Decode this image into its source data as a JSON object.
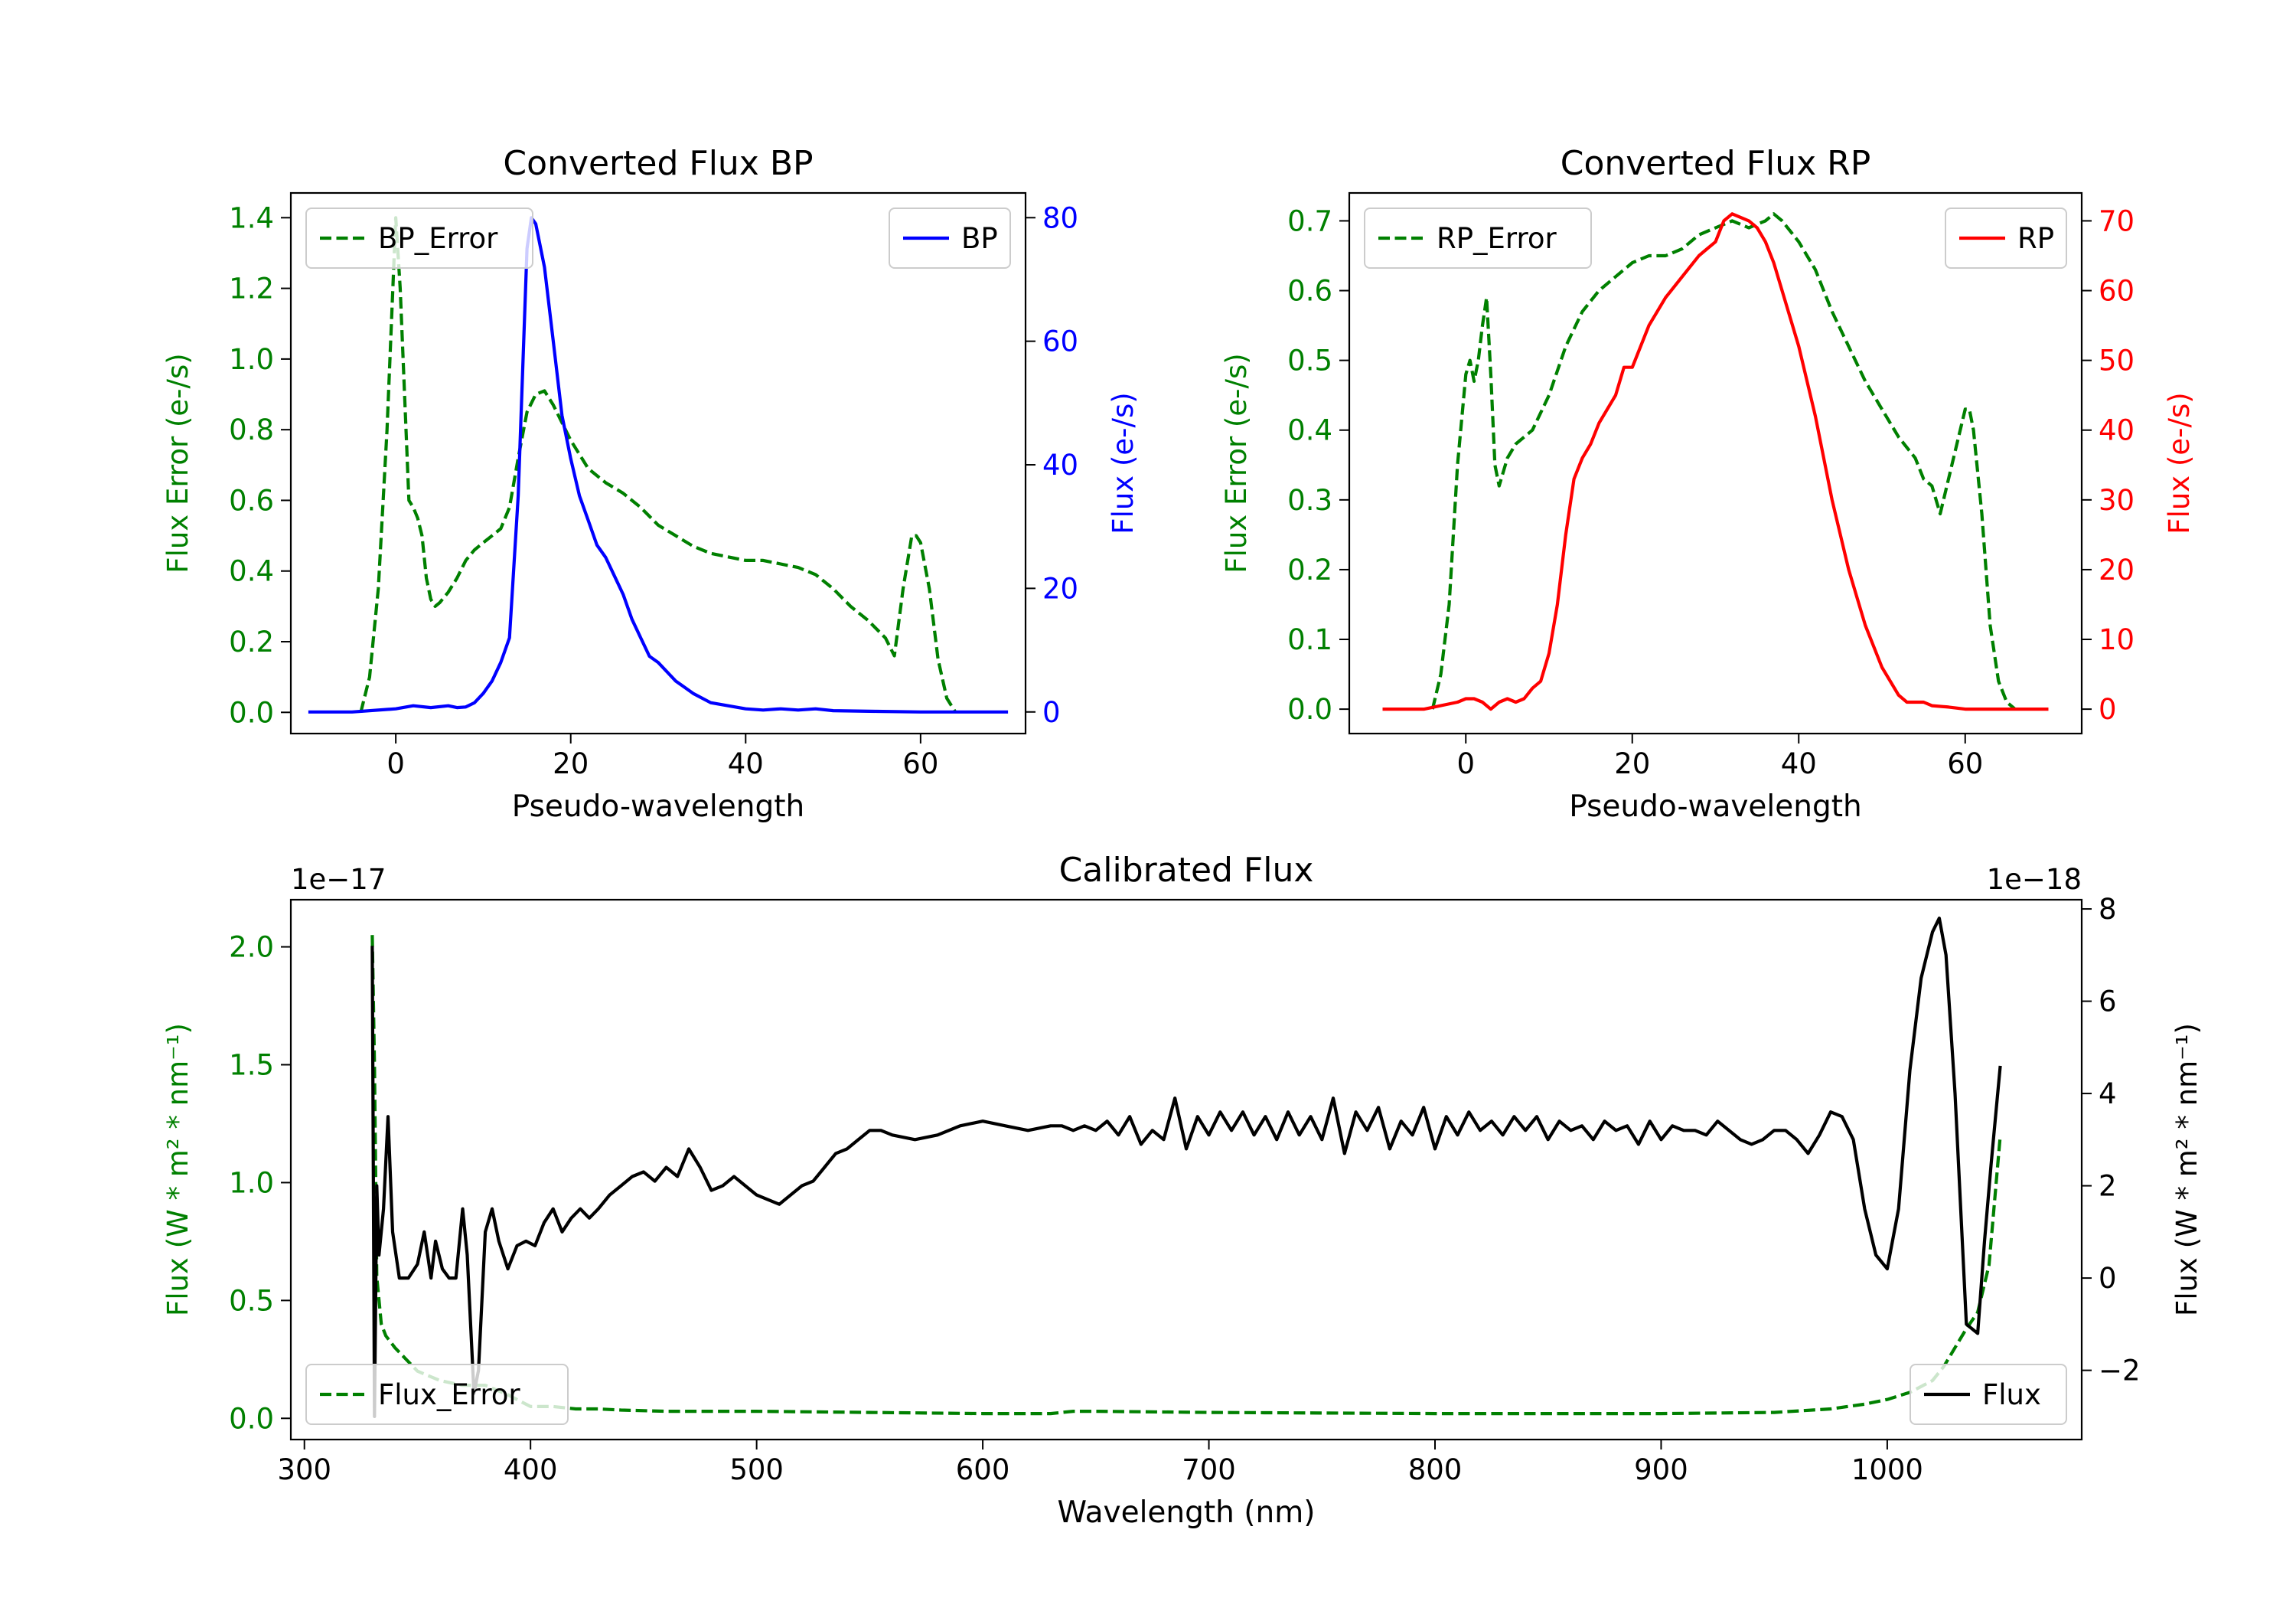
{
  "colors": {
    "bp": "#0000ff",
    "rp": "#ff0000",
    "error": "#008000",
    "flux": "#000000",
    "axis": "#000000"
  },
  "chart_data": [
    {
      "id": "bp",
      "type": "line",
      "title": "Converted Flux BP",
      "xlabel": "Pseudo-wavelength",
      "ylabel_left": "Flux Error (e-/s)",
      "ylabel_right": "Flux (e-/s)",
      "xlim": [
        -12,
        72
      ],
      "ylim_left": [
        -0.06,
        1.47
      ],
      "ylim_right": [
        -3.5,
        84
      ],
      "xticks": [
        0,
        20,
        40,
        60
      ],
      "yticks_left": [
        0.0,
        0.2,
        0.4,
        0.6,
        0.8,
        1.0,
        1.2,
        1.4
      ],
      "yticks_right": [
        0,
        20,
        40,
        60,
        80
      ],
      "legend_left": "top-left",
      "legend_right": "top-right",
      "series": [
        {
          "name": "BP_Error",
          "axis": "left",
          "style": "dashed",
          "color": "#008000",
          "x": [
            -4,
            -3,
            -2,
            -1,
            -0.5,
            0,
            0.5,
            1,
            1.5,
            2,
            2.5,
            3,
            3.5,
            4,
            4.5,
            5,
            6,
            7,
            8,
            9,
            10,
            11,
            12,
            13,
            14,
            15,
            16,
            17,
            18,
            19,
            20,
            22,
            24,
            26,
            28,
            30,
            32,
            34,
            36,
            38,
            40,
            42,
            44,
            46,
            48,
            50,
            52,
            54,
            56,
            57,
            58,
            59,
            59.5,
            60,
            61,
            62,
            63,
            64
          ],
          "y": [
            0.0,
            0.1,
            0.35,
            0.8,
            1.1,
            1.4,
            1.2,
            0.9,
            0.6,
            0.58,
            0.55,
            0.5,
            0.38,
            0.32,
            0.3,
            0.31,
            0.34,
            0.38,
            0.43,
            0.46,
            0.48,
            0.5,
            0.52,
            0.58,
            0.72,
            0.85,
            0.9,
            0.91,
            0.87,
            0.82,
            0.77,
            0.69,
            0.65,
            0.62,
            0.58,
            0.53,
            0.5,
            0.47,
            0.45,
            0.44,
            0.43,
            0.43,
            0.42,
            0.41,
            0.39,
            0.35,
            0.3,
            0.26,
            0.21,
            0.16,
            0.35,
            0.5,
            0.5,
            0.48,
            0.35,
            0.15,
            0.04,
            0.0
          ]
        },
        {
          "name": "BP",
          "axis": "right",
          "style": "solid",
          "color": "#0000ff",
          "x": [
            -10,
            -5,
            0,
            2,
            4,
            6,
            7,
            8,
            9,
            10,
            11,
            12,
            13,
            14,
            15,
            15.5,
            16,
            17,
            18,
            19,
            20,
            21,
            22,
            23,
            24,
            25,
            26,
            27,
            28,
            29,
            30,
            32,
            34,
            36,
            38,
            40,
            42,
            44,
            46,
            48,
            50,
            55,
            60,
            65,
            70
          ],
          "y": [
            0,
            0,
            0.5,
            1,
            0.7,
            1,
            0.7,
            0.8,
            1.5,
            3,
            5,
            8,
            12,
            35,
            75,
            80,
            79,
            72,
            60,
            48,
            41,
            35,
            31,
            27,
            25,
            22,
            19,
            15,
            12,
            9,
            8,
            5,
            3,
            1.5,
            1,
            0.5,
            0.3,
            0.5,
            0.3,
            0.5,
            0.2,
            0.1,
            0,
            0,
            0
          ]
        }
      ]
    },
    {
      "id": "rp",
      "type": "line",
      "title": "Converted Flux RP",
      "xlabel": "Pseudo-wavelength",
      "ylabel_left": "Flux Error (e-/s)",
      "ylabel_right": "Flux (e-/s)",
      "xlim": [
        -14,
        74
      ],
      "ylim_left": [
        -0.035,
        0.74
      ],
      "ylim_right": [
        -3.5,
        74
      ],
      "xticks": [
        0,
        20,
        40,
        60
      ],
      "yticks_left": [
        0.0,
        0.1,
        0.2,
        0.3,
        0.4,
        0.5,
        0.6,
        0.7
      ],
      "yticks_right": [
        0,
        10,
        20,
        30,
        40,
        50,
        60,
        70
      ],
      "legend_left": "top-left",
      "legend_right": "top-right",
      "series": [
        {
          "name": "RP_Error",
          "axis": "left",
          "style": "dashed",
          "color": "#008000",
          "x": [
            -4,
            -3,
            -2,
            -1,
            0,
            0.5,
            1,
            1.5,
            2,
            2.5,
            3,
            3.5,
            4,
            5,
            6,
            8,
            10,
            12,
            14,
            16,
            18,
            20,
            22,
            24,
            26,
            28,
            30,
            32,
            34,
            36,
            37,
            38,
            40,
            42,
            44,
            46,
            48,
            50,
            52,
            54,
            55,
            56,
            57,
            58,
            59,
            60,
            60.5,
            61,
            62,
            63,
            64,
            65,
            66
          ],
          "y": [
            0.0,
            0.05,
            0.15,
            0.35,
            0.48,
            0.5,
            0.47,
            0.5,
            0.55,
            0.59,
            0.48,
            0.35,
            0.32,
            0.36,
            0.38,
            0.4,
            0.45,
            0.52,
            0.57,
            0.6,
            0.62,
            0.64,
            0.65,
            0.65,
            0.66,
            0.68,
            0.69,
            0.7,
            0.69,
            0.7,
            0.71,
            0.7,
            0.67,
            0.63,
            0.57,
            0.52,
            0.47,
            0.43,
            0.39,
            0.36,
            0.33,
            0.32,
            0.28,
            0.33,
            0.38,
            0.43,
            0.43,
            0.4,
            0.28,
            0.12,
            0.04,
            0.01,
            0.0
          ]
        },
        {
          "name": "RP",
          "axis": "right",
          "style": "solid",
          "color": "#ff0000",
          "x": [
            -10,
            -5,
            -1,
            0,
            1,
            2,
            3,
            4,
            5,
            6,
            7,
            8,
            9,
            10,
            11,
            12,
            13,
            14,
            15,
            16,
            17,
            18,
            19,
            20,
            22,
            24,
            26,
            28,
            29,
            30,
            31,
            32,
            34,
            35,
            36,
            37,
            38,
            40,
            42,
            44,
            46,
            48,
            50,
            52,
            53,
            54,
            55,
            56,
            58,
            60,
            65,
            70
          ],
          "y": [
            0,
            0,
            1,
            1.5,
            1.5,
            1,
            0,
            1,
            1.5,
            1,
            1.5,
            3,
            4,
            8,
            15,
            25,
            33,
            36,
            38,
            41,
            43,
            45,
            49,
            49,
            55,
            59,
            62,
            65,
            66,
            67,
            70,
            71,
            70,
            69,
            67,
            64,
            60,
            52,
            42,
            30,
            20,
            12,
            6,
            2,
            1,
            1,
            1,
            0.5,
            0.3,
            0,
            0,
            0
          ]
        }
      ]
    },
    {
      "id": "calibrated",
      "type": "line",
      "title": "Calibrated Flux",
      "xlabel": "Wavelength (nm)",
      "ylabel_left": "Flux (W * m² * nm⁻¹)",
      "ylabel_right": "Flux (W * m² * nm⁻¹)",
      "offset_left": "1e−17",
      "offset_right": "1e−18",
      "xlim": [
        294,
        1086
      ],
      "ylim_left": [
        -0.09,
        2.2
      ],
      "ylim_right": [
        -3.5,
        8.2
      ],
      "xticks": [
        300,
        400,
        500,
        600,
        700,
        800,
        900,
        1000
      ],
      "yticks_left": [
        0.0,
        0.5,
        1.0,
        1.5,
        2.0
      ],
      "yticks_right": [
        -2,
        0,
        2,
        4,
        6,
        8
      ],
      "yticklabels_right": [
        "−2",
        "0",
        "2",
        "4",
        "6",
        "8"
      ],
      "legend_left": "bottom-left",
      "legend_right": "bottom-right",
      "series": [
        {
          "name": "Flux",
          "axis": "right",
          "style": "solid",
          "color": "#000000",
          "x": [
            330,
            331,
            332,
            333,
            335,
            337,
            339,
            342,
            346,
            350,
            353,
            356,
            358,
            361,
            364,
            367,
            370,
            372,
            375,
            377,
            380,
            383,
            386,
            390,
            394,
            398,
            402,
            406,
            410,
            414,
            418,
            422,
            426,
            430,
            435,
            440,
            445,
            450,
            455,
            460,
            465,
            470,
            475,
            480,
            485,
            490,
            495,
            500,
            505,
            510,
            515,
            520,
            525,
            530,
            535,
            540,
            545,
            550,
            555,
            560,
            570,
            580,
            590,
            600,
            610,
            620,
            630,
            635,
            640,
            645,
            650,
            655,
            660,
            665,
            670,
            675,
            680,
            685,
            690,
            695,
            700,
            705,
            710,
            715,
            720,
            725,
            730,
            735,
            740,
            745,
            750,
            755,
            760,
            765,
            770,
            775,
            780,
            785,
            790,
            795,
            800,
            805,
            810,
            815,
            820,
            825,
            830,
            835,
            840,
            845,
            850,
            855,
            860,
            865,
            870,
            875,
            880,
            885,
            890,
            895,
            900,
            905,
            910,
            915,
            920,
            925,
            930,
            935,
            940,
            945,
            950,
            955,
            960,
            965,
            970,
            975,
            980,
            985,
            990,
            995,
            1000,
            1005,
            1010,
            1015,
            1020,
            1023,
            1026,
            1030,
            1035,
            1040,
            1043,
            1046,
            1050
          ],
          "y": [
            7.2,
            -3.0,
            2.0,
            0.5,
            1.5,
            3.5,
            1.0,
            0.0,
            0.0,
            0.3,
            1.0,
            0.0,
            0.8,
            0.2,
            0.0,
            0.0,
            1.5,
            0.5,
            -2.5,
            -2.0,
            1.0,
            1.5,
            0.8,
            0.2,
            0.7,
            0.8,
            0.7,
            1.2,
            1.5,
            1.0,
            1.3,
            1.5,
            1.3,
            1.5,
            1.8,
            2.0,
            2.2,
            2.3,
            2.1,
            2.4,
            2.2,
            2.8,
            2.4,
            1.9,
            2.0,
            2.2,
            2.0,
            1.8,
            1.7,
            1.6,
            1.8,
            2.0,
            2.1,
            2.4,
            2.7,
            2.8,
            3.0,
            3.2,
            3.2,
            3.1,
            3.0,
            3.1,
            3.3,
            3.4,
            3.3,
            3.2,
            3.3,
            3.3,
            3.2,
            3.3,
            3.2,
            3.4,
            3.1,
            3.5,
            2.9,
            3.2,
            3.0,
            3.9,
            2.8,
            3.5,
            3.1,
            3.6,
            3.2,
            3.6,
            3.1,
            3.5,
            3.0,
            3.6,
            3.1,
            3.5,
            3.0,
            3.9,
            2.7,
            3.6,
            3.2,
            3.7,
            2.8,
            3.4,
            3.1,
            3.7,
            2.8,
            3.5,
            3.1,
            3.6,
            3.2,
            3.4,
            3.1,
            3.5,
            3.2,
            3.5,
            3.0,
            3.4,
            3.2,
            3.3,
            3.0,
            3.4,
            3.2,
            3.3,
            2.9,
            3.4,
            3.0,
            3.3,
            3.2,
            3.2,
            3.1,
            3.4,
            3.2,
            3.0,
            2.9,
            3.0,
            3.2,
            3.2,
            3.0,
            2.7,
            3.1,
            3.6,
            3.5,
            3.0,
            1.5,
            0.5,
            0.2,
            1.5,
            4.5,
            6.5,
            7.5,
            7.8,
            7.0,
            4.0,
            -1.0,
            -1.2,
            0.8,
            2.5,
            4.6
          ]
        },
        {
          "name": "Flux_Error",
          "axis": "left",
          "style": "dashed",
          "color": "#008000",
          "x": [
            330,
            331,
            332,
            334,
            336,
            340,
            345,
            350,
            360,
            370,
            380,
            390,
            400,
            410,
            420,
            430,
            440,
            460,
            500,
            550,
            600,
            630,
            640,
            650,
            700,
            800,
            900,
            950,
            975,
            990,
            1000,
            1010,
            1020,
            1025,
            1030,
            1035,
            1040,
            1045,
            1050
          ],
          "y": [
            2.05,
            1.5,
            0.6,
            0.4,
            0.35,
            0.3,
            0.25,
            0.2,
            0.16,
            0.14,
            0.14,
            0.1,
            0.05,
            0.05,
            0.04,
            0.04,
            0.035,
            0.03,
            0.03,
            0.025,
            0.02,
            0.02,
            0.03,
            0.03,
            0.025,
            0.02,
            0.02,
            0.025,
            0.04,
            0.06,
            0.08,
            0.11,
            0.16,
            0.22,
            0.3,
            0.38,
            0.45,
            0.65,
            1.2
          ]
        }
      ]
    }
  ]
}
